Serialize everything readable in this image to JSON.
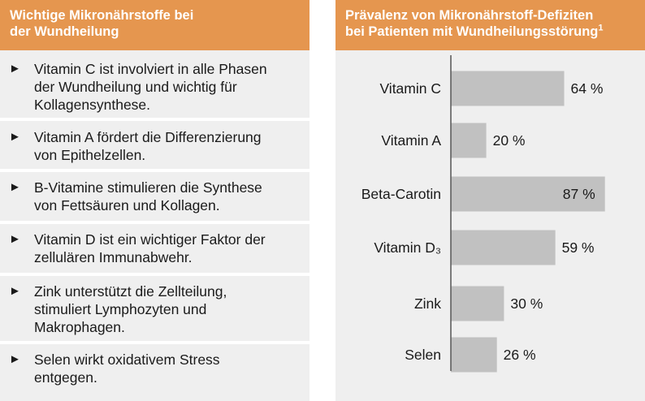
{
  "left_panel": {
    "title_line1": "Wichtige Mikronährstoffe bei",
    "title_line2": "der Wundheilung",
    "arrow": "►",
    "items": [
      {
        "lines": [
          "Vitamin C ist involviert in alle Phasen",
          "der Wundheilung und wichtig für",
          "Kollagensynthese."
        ]
      },
      {
        "lines": [
          "Vitamin A fördert die Differenzierung",
          "von Epithelzellen."
        ]
      },
      {
        "lines": [
          "B-Vitamine stimulieren die Synthese",
          "von Fettsäuren und Kollagen."
        ]
      },
      {
        "lines": [
          "Vitamin D ist ein wichtiger Faktor der",
          "zellulären Immunabwehr."
        ]
      },
      {
        "lines": [
          "Zink unterstützt die Zellteilung,",
          "stimuliert Lymphozyten und",
          "Makrophagen."
        ]
      },
      {
        "lines": [
          "Selen wirkt oxidativem Stress",
          "entgegen."
        ]
      }
    ]
  },
  "right_panel": {
    "title_line1": "Prävalenz von Mikronährstoff-Defiziten",
    "title_line2_text": "bei Patienten mit Wundheilungsstörung",
    "title_line2_sup": "1"
  },
  "chart_data": {
    "type": "bar",
    "orientation": "horizontal",
    "categories": [
      "Vitamin C",
      "Vitamin A",
      "Beta-Carotin",
      "Vitamin D₃",
      "Zink",
      "Selen"
    ],
    "values": [
      64,
      20,
      87,
      59,
      30,
      26
    ],
    "value_labels": [
      "64 %",
      "20 %",
      "87 %",
      "59 %",
      "30 %",
      "26 %"
    ],
    "xlim": [
      0,
      100
    ],
    "bar_color": "#c1c1c1",
    "axis_color": "#555555"
  },
  "colors": {
    "accent": "#e5964f",
    "panel_bg": "#efefef",
    "text": "#1a1a1a"
  }
}
